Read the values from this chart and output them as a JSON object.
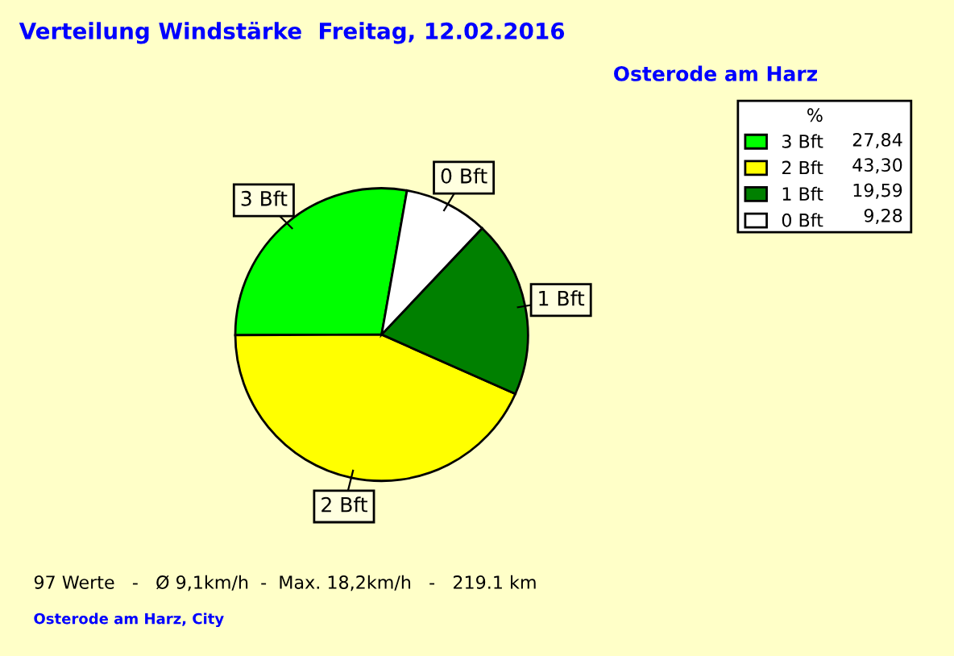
{
  "chart_data": {
    "type": "pie",
    "title": "Verteilung Windstärke  Freitag, 12.02.2016",
    "subtitle": "Osterode am Harz",
    "categories": [
      "3 Bft",
      "2 Bft",
      "1 Bft",
      "0 Bft"
    ],
    "values": [
      27.84,
      43.3,
      19.59,
      9.28
    ],
    "value_labels": [
      "27,84",
      "43,30",
      "19,59",
      "9,28"
    ],
    "colors": [
      "#00ff00",
      "#ffff00",
      "#008000",
      "#ffffff"
    ],
    "legend_title": "%",
    "legend": "top right",
    "annotations": [
      "97 Werte   -   Ø 9,1km/h  -  Max. 18,2km/h   -   219.1 km",
      "Osterode am Harz, City"
    ]
  }
}
